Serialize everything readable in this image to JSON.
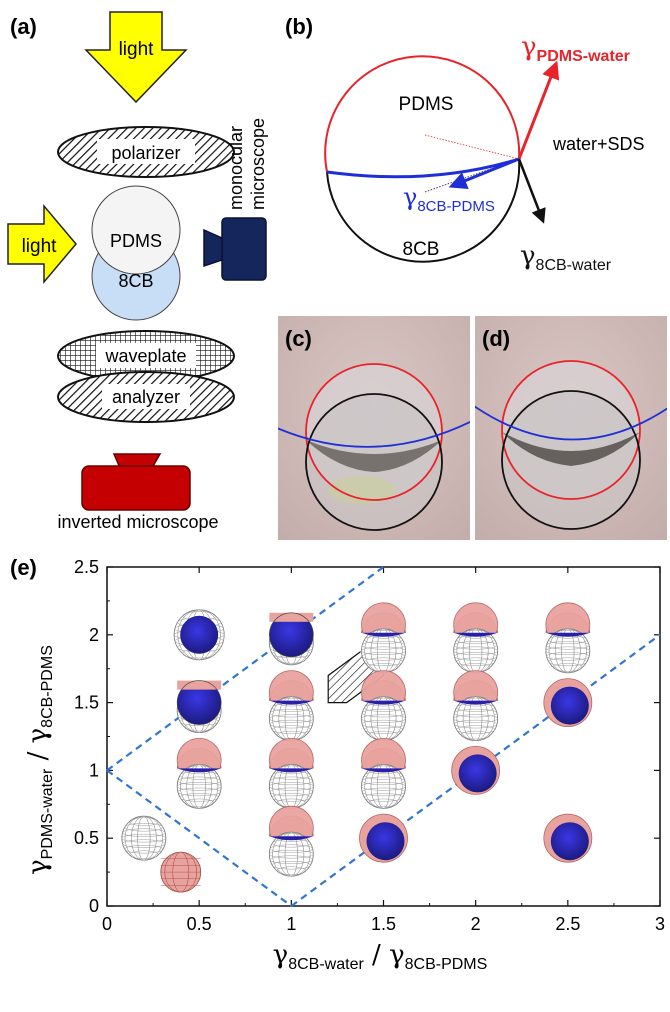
{
  "panels": {
    "a": {
      "label": "(a)",
      "light_top": "light",
      "polarizer": "polarizer",
      "light_side": "light",
      "pdms": "PDMS",
      "lc": "8CB",
      "microscope_side_line1": "monocular",
      "microscope_side_line2": "microscope",
      "waveplate": "waveplate",
      "analyzer": "analyzer",
      "inverted": "inverted microscope"
    },
    "b": {
      "label": "(b)",
      "pdms": "PDMS",
      "lc": "8CB",
      "medium": "water+SDS",
      "gamma_pdms_water_main": "γ",
      "gamma_pdms_water_sub": "PDMS-water",
      "gamma_8cb_pdms_main": "γ",
      "gamma_8cb_pdms_sub": "8CB-PDMS",
      "gamma_8cb_water_main": "γ",
      "gamma_8cb_water_sub": "8CB-water",
      "colors": {
        "pdms_water": "#e8232a",
        "lc_pdms": "#1f2fd6",
        "lc_water": "#111111"
      }
    },
    "c": {
      "label": "(c)"
    },
    "d": {
      "label": "(d)"
    },
    "e": {
      "label": "(e)"
    }
  },
  "chart_data": {
    "type": "scatter",
    "xlabel_main": "γ",
    "xlabel_sub1": "8CB-water",
    "xlabel_sep": " / γ",
    "xlabel_sub2": "8CB-PDMS",
    "ylabel_main": "γ",
    "ylabel_sub1": "PDMS-water",
    "ylabel_sep": " / γ",
    "ylabel_sub2": "8CB-PDMS",
    "xlim": [
      0,
      3
    ],
    "ylim": [
      0,
      2.5
    ],
    "xticks": [
      "0",
      "0.5",
      "1",
      "1.5",
      "2",
      "2.5",
      "3"
    ],
    "xtick_values": [
      0,
      0.5,
      1,
      1.5,
      2,
      2.5,
      3
    ],
    "yticks": [
      "0",
      "0.5",
      "1",
      "1.5",
      "2",
      "2.5"
    ],
    "ytick_values": [
      0,
      0.5,
      1,
      1.5,
      2,
      2.5
    ],
    "boundary_lines": [
      {
        "x": [
          0,
          1.5
        ],
        "y": [
          1,
          2.5
        ]
      },
      {
        "x": [
          0,
          1
        ],
        "y": [
          1,
          0
        ]
      },
      {
        "x": [
          1,
          3
        ],
        "y": [
          0,
          2
        ]
      }
    ],
    "hatched_region": [
      [
        1.2,
        1.5
      ],
      [
        1.2,
        1.7
      ],
      [
        1.4,
        1.9
      ],
      [
        1.5,
        1.9
      ],
      [
        1.5,
        1.7
      ],
      [
        1.3,
        1.5
      ]
    ],
    "points": [
      {
        "x": 0.5,
        "y": 2.0,
        "shape": "engulf-lc"
      },
      {
        "x": 1.0,
        "y": 2.0,
        "shape": "lc-dominant"
      },
      {
        "x": 1.5,
        "y": 2.0,
        "shape": "janus"
      },
      {
        "x": 2.0,
        "y": 2.0,
        "shape": "janus"
      },
      {
        "x": 2.5,
        "y": 2.0,
        "shape": "janus"
      },
      {
        "x": 0.5,
        "y": 1.5,
        "shape": "lc-dominant"
      },
      {
        "x": 1.0,
        "y": 1.5,
        "shape": "janus"
      },
      {
        "x": 1.5,
        "y": 1.5,
        "shape": "janus"
      },
      {
        "x": 2.0,
        "y": 1.5,
        "shape": "janus"
      },
      {
        "x": 2.5,
        "y": 1.5,
        "shape": "engulf-pdms"
      },
      {
        "x": 0.5,
        "y": 1.0,
        "shape": "janus"
      },
      {
        "x": 1.0,
        "y": 1.0,
        "shape": "janus"
      },
      {
        "x": 1.5,
        "y": 1.0,
        "shape": "janus"
      },
      {
        "x": 2.0,
        "y": 1.0,
        "shape": "engulf-pdms"
      },
      {
        "x": 1.0,
        "y": 0.5,
        "shape": "janus"
      },
      {
        "x": 1.5,
        "y": 0.5,
        "shape": "engulf-pdms"
      },
      {
        "x": 2.5,
        "y": 0.5,
        "shape": "engulf-pdms"
      },
      {
        "x": 0.2,
        "y": 0.5,
        "shape": "separate-lc"
      },
      {
        "x": 0.4,
        "y": 0.25,
        "shape": "separate-pdms"
      }
    ]
  }
}
